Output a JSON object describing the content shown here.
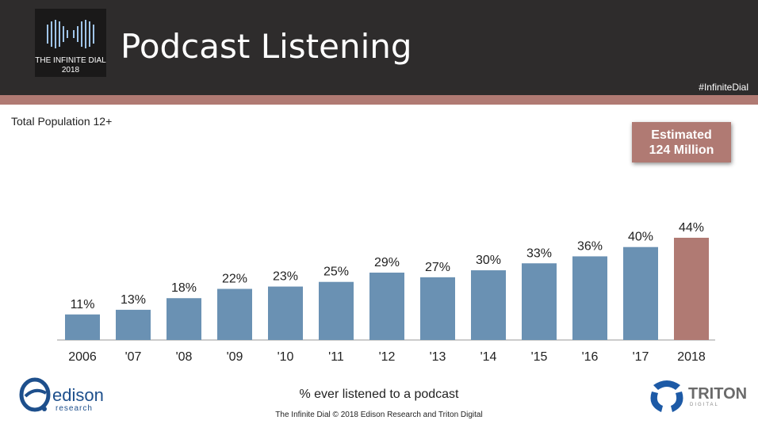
{
  "header": {
    "logo_line1": "THE INFINITE DIAL",
    "logo_line2": "2018",
    "title": "Podcast Listening",
    "hashtag": "#InfiniteDial"
  },
  "callout": {
    "line1": "Estimated",
    "line2": "124 Million"
  },
  "footer": {
    "caption": "% ever listened to a podcast",
    "credit": "The Infinite Dial   © 2018 Edison Research and Triton Digital",
    "edison_word": "edison",
    "edison_sub": "research",
    "triton_word": "TRITON",
    "triton_sub": "DIGITAL"
  },
  "colors": {
    "bar": "#6a91b3",
    "highlight": "#b07a73",
    "header": "#2e2c2c",
    "stripe": "#b07a73"
  },
  "chart_data": {
    "type": "bar",
    "title": "",
    "subtitle": "Total Population 12+",
    "xlabel": "",
    "ylabel": "",
    "categories": [
      "2006",
      "'07",
      "'08",
      "'09",
      "'10",
      "'11",
      "'12",
      "'13",
      "'14",
      "'15",
      "'16",
      "'17",
      "2018"
    ],
    "values": [
      11,
      13,
      18,
      22,
      23,
      25,
      29,
      27,
      30,
      33,
      36,
      40,
      44
    ],
    "labels": [
      "11%",
      "13%",
      "18%",
      "22%",
      "23%",
      "25%",
      "29%",
      "27%",
      "30%",
      "33%",
      "36%",
      "40%",
      "44%"
    ],
    "ylim": [
      0,
      44
    ],
    "highlight_index": 12,
    "grid": false
  }
}
